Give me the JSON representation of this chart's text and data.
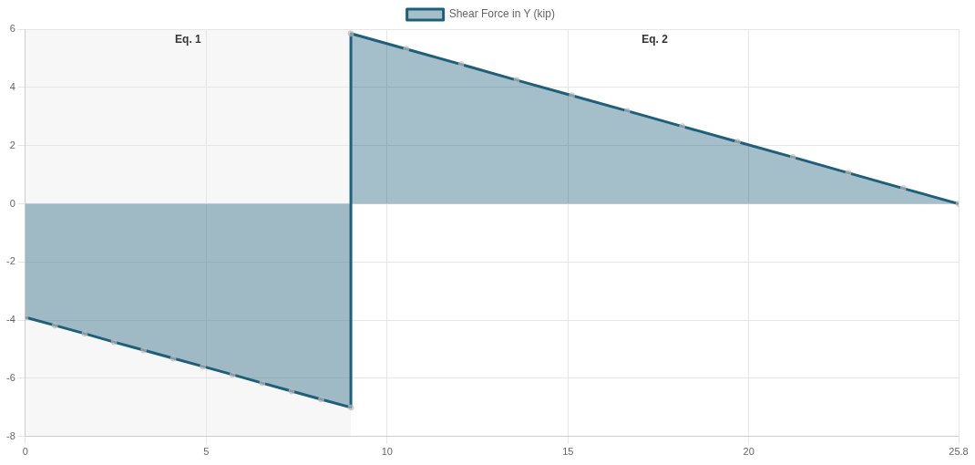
{
  "chart_data": {
    "type": "area",
    "legend": "top",
    "grid": true,
    "marker": "circle",
    "xlim": [
      0,
      25.8
    ],
    "xticks": [
      0,
      5,
      10,
      15,
      20,
      25.8
    ],
    "ylim": [
      -8,
      6
    ],
    "yticks": [
      -8,
      -6,
      -4,
      -2,
      0,
      2,
      4,
      6
    ],
    "bands": [
      {
        "axis": "x",
        "from": 0,
        "to": 9,
        "label": "Eq. 1",
        "color": "#f7f7f7"
      }
    ],
    "annotations": [
      "Eq. 2"
    ],
    "series": [
      {
        "name": "Shear Force in Y (kip)",
        "color": "#1f5f7a",
        "x": [
          0,
          0.82,
          1.64,
          2.45,
          3.27,
          4.09,
          4.91,
          5.73,
          6.55,
          7.36,
          8.18,
          9,
          9,
          10.53,
          12.05,
          13.58,
          15.11,
          16.64,
          18.16,
          19.69,
          21.22,
          22.75,
          24.27,
          25.8
        ],
        "values": [
          -3.9,
          -4.18,
          -4.46,
          -4.75,
          -5.03,
          -5.31,
          -5.59,
          -5.87,
          -6.16,
          -6.44,
          -6.72,
          -7.0,
          5.85,
          5.32,
          4.79,
          4.25,
          3.72,
          3.19,
          2.66,
          2.13,
          1.6,
          1.06,
          0.53,
          0
        ]
      }
    ]
  }
}
